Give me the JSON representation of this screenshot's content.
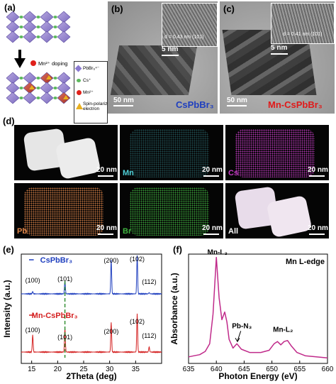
{
  "panels": {
    "a": {
      "label": "(a)",
      "doping_text": "Mn²⁺ doping",
      "legend": [
        "PbBr₆⁴⁻",
        "Cs⁺",
        "Mn²⁺",
        "Spin-polarized\nelectron"
      ]
    },
    "b": {
      "label": "(b)",
      "inset_d": "d = 0.43 nm (101)",
      "inset_scale": "5 nm",
      "scale": "50 nm",
      "title": "CsPbBr₃"
    },
    "c": {
      "label": "(c)",
      "inset_d": "d = 0.41 nm (101)",
      "inset_scale": "5 nm",
      "scale": "50 nm",
      "title": "Mn-CsPbBr₃"
    },
    "d": {
      "label": "(d)",
      "maps": [
        {
          "element": "",
          "scale": "20 nm",
          "color": "#ffffff"
        },
        {
          "element": "Mn",
          "scale": "20 nm",
          "color": "#4fd0d8"
        },
        {
          "element": "Cs",
          "scale": "20 nm",
          "color": "#c43cc4"
        },
        {
          "element": "Pb",
          "scale": "20 nm",
          "color": "#e0864a"
        },
        {
          "element": "Br",
          "scale": "20 nm",
          "color": "#3fb23f"
        },
        {
          "element": "All",
          "scale": "20 nm",
          "color": "#ffffff"
        }
      ]
    },
    "e": {
      "label": "(e)"
    },
    "f": {
      "label": "(f)"
    }
  },
  "chart_data": [
    {
      "type": "line",
      "xlabel": "2Theta (deg)",
      "ylabel": "Intensity (a.u.)",
      "xlim": [
        13,
        40
      ],
      "xticks": [
        15,
        20,
        25,
        30,
        35
      ],
      "series": [
        {
          "name": "CsPbBr₃",
          "color": "#1f3fbf",
          "x": [
            13,
            15.2,
            21.4,
            30.3,
            35.3,
            37.6,
            40
          ],
          "peaks": [
            [
              15.2,
              0.05
            ],
            [
              21.4,
              0.3
            ],
            [
              30.3,
              0.8
            ],
            [
              35.3,
              0.9
            ],
            [
              37.6,
              0.03
            ]
          ]
        },
        {
          "name": "Mn-CsPbBr₃",
          "color": "#d42020",
          "x": [
            13,
            15.2,
            21.4,
            30.3,
            35.3,
            37.6,
            40
          ],
          "peaks": [
            [
              15.2,
              0.4
            ],
            [
              21.4,
              0.55
            ],
            [
              30.3,
              0.7
            ],
            [
              35.3,
              0.9
            ],
            [
              37.6,
              0.12
            ]
          ]
        }
      ],
      "peak_labels_top": [
        "(100)",
        "(101)",
        "(200)",
        "(102)",
        "(112)"
      ],
      "peak_labels_bottom": [
        "(100)",
        "(101)",
        "(200)",
        "(102)",
        "(112)"
      ]
    },
    {
      "type": "line",
      "title": "Mn L-edge",
      "xlabel": "Photon Energy (eV)",
      "ylabel": "Absorbance (a.u.)",
      "xlim": [
        635,
        660
      ],
      "xticks": [
        635,
        640,
        645,
        650,
        655,
        660
      ],
      "series": [
        {
          "color": "#c02a8a",
          "x": [
            635,
            636,
            637,
            638,
            638.8,
            639.4,
            640.0,
            640.5,
            641.0,
            641.5,
            641.9,
            642.3,
            643.0,
            643.7,
            644.5,
            646,
            648,
            649.5,
            650.4,
            651.0,
            651.6,
            652.2,
            652.8,
            653.5,
            654.5,
            656,
            658,
            660
          ],
          "y": [
            0.06,
            0.07,
            0.08,
            0.11,
            0.18,
            0.45,
            0.97,
            0.6,
            0.4,
            0.47,
            0.38,
            0.22,
            0.14,
            0.18,
            0.13,
            0.1,
            0.1,
            0.12,
            0.18,
            0.2,
            0.17,
            0.2,
            0.21,
            0.16,
            0.1,
            0.07,
            0.06,
            0.05
          ]
        }
      ],
      "annotations": [
        "Mn-L₃",
        "Pb-N₃",
        "Mn-L₂"
      ]
    }
  ]
}
